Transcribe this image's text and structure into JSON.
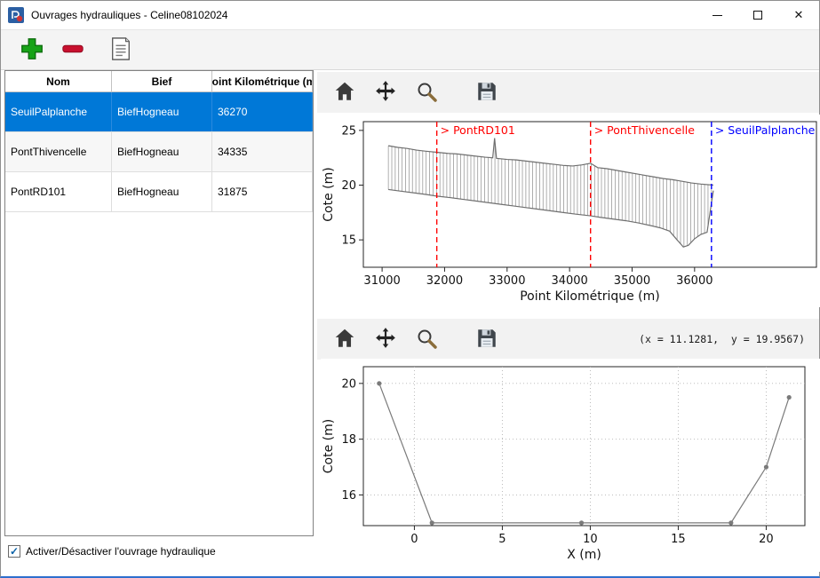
{
  "window": {
    "title": "Ouvrages hydrauliques - Celine08102024",
    "controls": {
      "minimize_glyph": "–",
      "close_glyph": "✕"
    }
  },
  "main_toolbar": {
    "buttons": [
      {
        "name": "add",
        "icon": "plus-icon"
      },
      {
        "name": "remove",
        "icon": "minus-icon"
      },
      {
        "name": "notes",
        "icon": "notes-icon"
      }
    ]
  },
  "table": {
    "columns": [
      "Nom",
      "Bief",
      "Point Kilométrique (m)"
    ],
    "rows": [
      {
        "nom": "SeuilPalplanche",
        "bief": "BiefHogneau",
        "pk": "36270",
        "selected": true
      },
      {
        "nom": "PontThivencelle",
        "bief": "BiefHogneau",
        "pk": "34335",
        "selected": false
      },
      {
        "nom": "PontRD101",
        "bief": "BiefHogneau",
        "pk": "31875",
        "selected": false
      }
    ],
    "selection_color": "#0078d7"
  },
  "checkbox": {
    "label": "Activer/Désactiver l'ouvrage hydraulique",
    "checked": true
  },
  "plot_toolbar": {
    "buttons": [
      "home",
      "pan",
      "zoom",
      "save"
    ]
  },
  "readout": "(x = 11.1281,  y = 19.9567)",
  "chart_data": [
    {
      "type": "line",
      "title": "",
      "xlabel": "Point Kilométrique (m)",
      "ylabel": "Cote (m)",
      "xlim": [
        30700,
        37950
      ],
      "ylim": [
        12.5,
        25.8
      ],
      "xticks": [
        31000,
        32000,
        33000,
        34000,
        35000,
        36000
      ],
      "yticks": [
        15,
        20,
        25
      ],
      "grid": false,
      "line_color": "#6f6f6f",
      "series": [
        {
          "name": "top-profile",
          "x": [
            31100,
            31250,
            31400,
            31550,
            31700,
            31875,
            32050,
            32200,
            32350,
            32500,
            32650,
            32770,
            32800,
            32830,
            33000,
            33150,
            33300,
            33450,
            33600,
            33750,
            33900,
            34050,
            34200,
            34335,
            34450,
            34600,
            34750,
            34900,
            35050,
            35200,
            35350,
            35500,
            35650,
            35800,
            35950,
            36100,
            36300
          ],
          "y": [
            23.6,
            23.45,
            23.35,
            23.2,
            23.1,
            23.0,
            22.9,
            22.85,
            22.75,
            22.65,
            22.55,
            22.5,
            24.3,
            22.45,
            22.35,
            22.3,
            22.2,
            22.1,
            22.0,
            21.9,
            21.8,
            21.75,
            21.85,
            22.0,
            21.6,
            21.5,
            21.35,
            21.2,
            21.05,
            20.9,
            20.75,
            20.6,
            20.5,
            20.35,
            20.2,
            20.1,
            20.0
          ]
        },
        {
          "name": "bottom-profile",
          "x": [
            31100,
            31300,
            31500,
            31700,
            31875,
            32100,
            32300,
            32500,
            32700,
            32900,
            33100,
            33300,
            33500,
            33700,
            33900,
            34100,
            34335,
            34500,
            34700,
            34900,
            35100,
            35300,
            35450,
            35600,
            35720,
            35820,
            35900,
            36000,
            36100,
            36200,
            36300
          ],
          "y": [
            19.6,
            19.45,
            19.3,
            19.15,
            19.0,
            18.85,
            18.7,
            18.55,
            18.4,
            18.25,
            18.1,
            17.95,
            17.8,
            17.65,
            17.5,
            17.35,
            17.2,
            17.05,
            16.9,
            16.75,
            16.55,
            16.3,
            16.1,
            15.8,
            15.0,
            14.35,
            14.5,
            15.1,
            15.5,
            15.7,
            19.5
          ]
        }
      ],
      "hatch": {
        "between": [
          1,
          0
        ],
        "start": 31100,
        "end": 36300,
        "step": 55
      },
      "annotations": [
        {
          "label": "> PontRD101",
          "x": 31875,
          "color": "#ff0000"
        },
        {
          "label": "> PontThivencelle",
          "x": 34335,
          "color": "#ff0000"
        },
        {
          "label": "> SeuilPalplanche",
          "x": 36270,
          "color": "#0000ff"
        }
      ]
    },
    {
      "type": "line",
      "title": "",
      "xlabel": "X (m)",
      "ylabel": "Cote (m)",
      "xlim": [
        -2.9,
        22.2
      ],
      "ylim": [
        14.9,
        20.6
      ],
      "xticks": [
        0,
        5,
        10,
        15,
        20
      ],
      "yticks": [
        16,
        18,
        20
      ],
      "grid": true,
      "line_color": "#7a7a7a",
      "series": [
        {
          "name": "cross-section",
          "marker": true,
          "x": [
            -2,
            1,
            9.5,
            18,
            20,
            21.3
          ],
          "y": [
            20,
            15,
            15,
            15,
            17,
            19.5
          ]
        }
      ],
      "annotations": []
    }
  ]
}
